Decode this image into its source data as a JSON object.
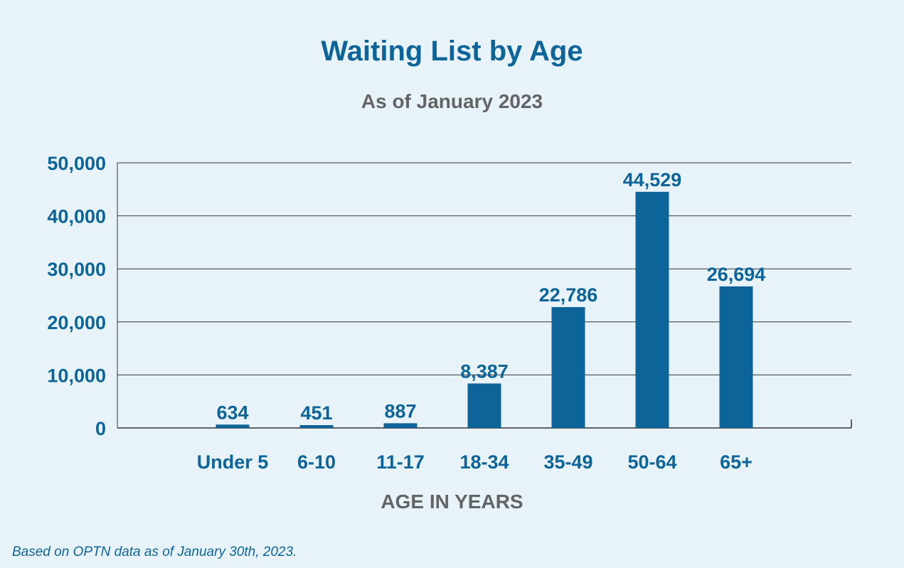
{
  "chart_data": {
    "type": "bar",
    "title": "Waiting List by Age",
    "subtitle": "As of January 2023",
    "xlabel": "AGE IN YEARS",
    "ylabel": "",
    "categories": [
      "Under 5",
      "6-10",
      "11-17",
      "18-34",
      "35-49",
      "50-64",
      "65+"
    ],
    "values": [
      634,
      451,
      887,
      8387,
      22786,
      44529,
      26694
    ],
    "data_labels": [
      "634",
      "451",
      "887",
      "8,387",
      "22,786",
      "44,529",
      "26,694"
    ],
    "ylim": [
      0,
      50000
    ],
    "yticks": [
      0,
      10000,
      20000,
      30000,
      40000,
      50000
    ],
    "ytick_labels": [
      "0",
      "10,000",
      "20,000",
      "30,000",
      "40,000",
      "50,000"
    ],
    "grid": true,
    "legend": "none",
    "bar_color": "#0d6499"
  },
  "footnote": "Based on OPTN data as of January 30th, 2023.",
  "colors": {
    "background": "#e8f3f9",
    "accent": "#0d6499",
    "secondary_text": "#636466",
    "gridline": "#333333"
  }
}
